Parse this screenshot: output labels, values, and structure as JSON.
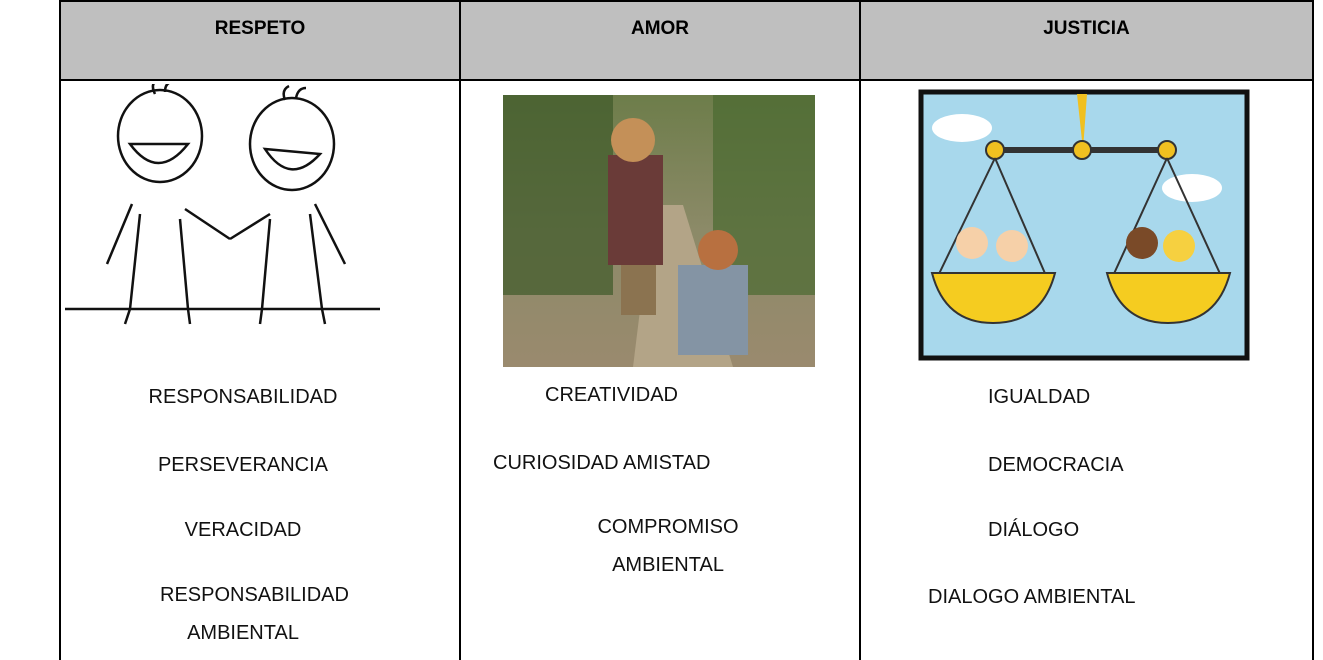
{
  "table": {
    "headers": [
      "RESPETO",
      "AMOR",
      "JUSTICIA"
    ],
    "columns": [
      [
        "RESPONSABILIDAD",
        "PERSEVERANCIA",
        "VERACIDAD",
        "RESPONSABILIDAD AMBIENTAL"
      ],
      [
        "CREATIVIDAD",
        "CURIOSIDAD AMISTAD",
        "COMPROMISO AMBIENTAL"
      ],
      [
        "IGUALDAD",
        "DEMOCRACIA",
        "DIÁLOGO",
        "DIALOGO AMBIENTAL"
      ]
    ]
  }
}
